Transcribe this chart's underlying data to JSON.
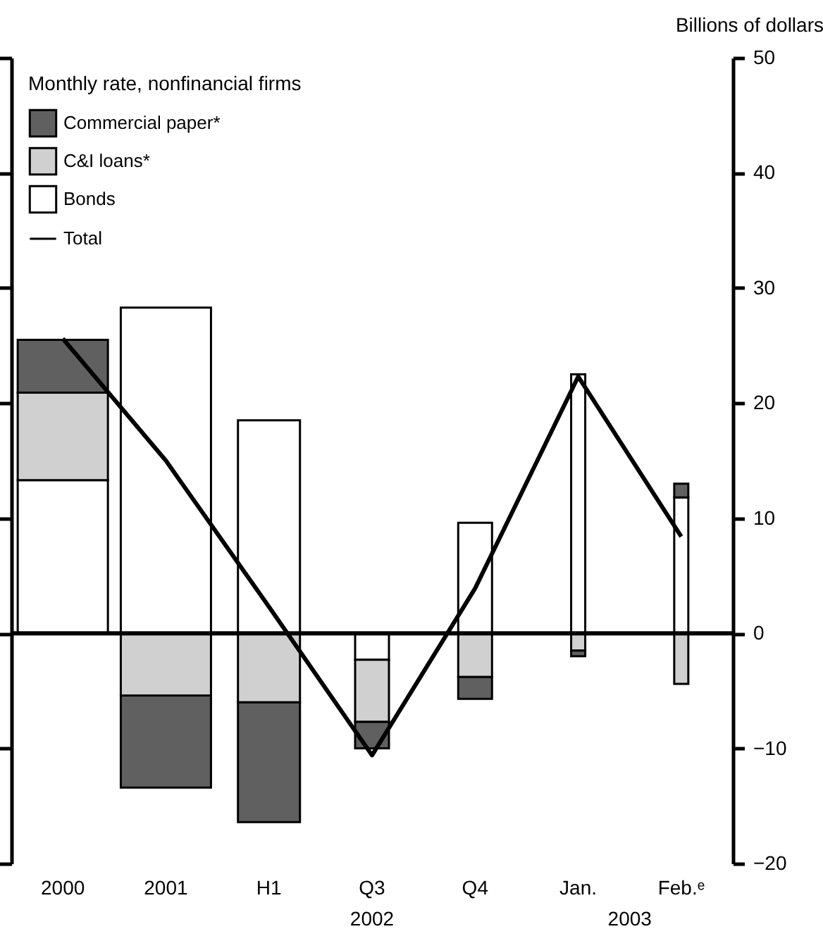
{
  "chart_data": {
    "type": "bar",
    "stacked": true,
    "ylabel": "Billions of dollars",
    "legend_title": "Monthly rate, nonfinancial firms",
    "categories": [
      "2000",
      "2001",
      "H1",
      "Q3",
      "Q4",
      "Jan.",
      "Feb.ᵉ"
    ],
    "series": [
      {
        "name": "Bonds",
        "color": "#ffffff",
        "values": [
          13.3,
          28.3,
          18.5,
          -2.3,
          9.6,
          22.5,
          11.8
        ]
      },
      {
        "name": "C&I loans*",
        "color": "#d0d0d0",
        "values": [
          7.6,
          -5.4,
          -6.0,
          -5.4,
          -3.8,
          -1.5,
          -4.4
        ]
      },
      {
        "name": "Commercial paper*",
        "color": "#606060",
        "values": [
          4.6,
          -8.0,
          -10.4,
          -2.3,
          -1.9,
          -0.5,
          1.2
        ]
      },
      {
        "name": "Total",
        "type": "line",
        "color": "#000000",
        "values": [
          25.6,
          15.0,
          2.3,
          -10.6,
          3.9,
          22.3,
          8.4
        ]
      }
    ],
    "annotations": [
      "2002",
      "2003"
    ],
    "ylim": [
      -20,
      50
    ],
    "yticks": [
      -20,
      -10,
      0,
      10,
      20,
      30,
      40,
      50
    ],
    "ref_lines": [
      {
        "axis": "y",
        "value": 0,
        "color": "#000000"
      }
    ],
    "grid": false,
    "legend": "top left"
  }
}
